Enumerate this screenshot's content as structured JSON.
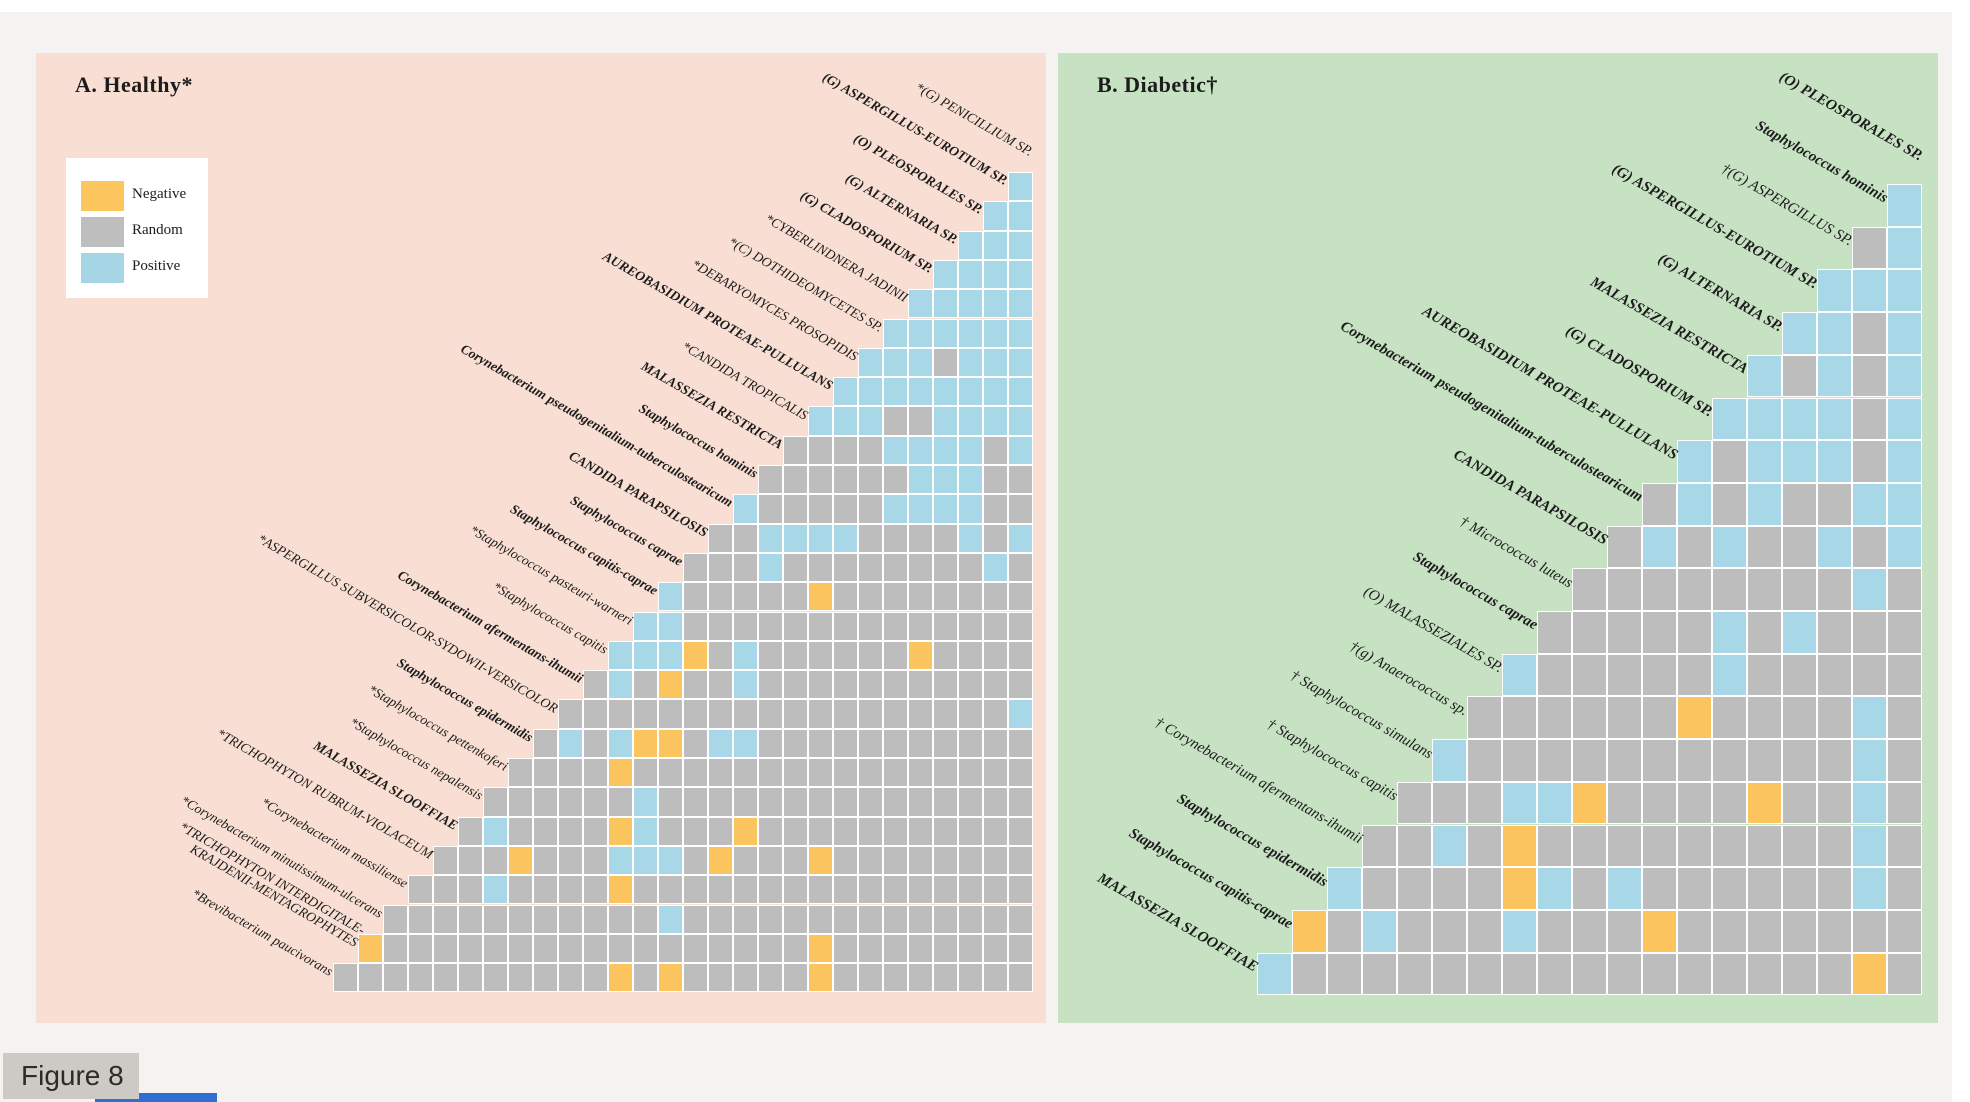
{
  "figure_label": "Figure 8",
  "legend": {
    "items": [
      {
        "code": "N",
        "label": "Negative",
        "color": "#fcc55e"
      },
      {
        "code": "R",
        "label": "Random",
        "color": "#bebebe"
      },
      {
        "code": "P",
        "label": "Positive",
        "color": "#a6d5e6"
      }
    ]
  },
  "chart_data": [
    {
      "type": "heatmap",
      "panel": "A",
      "title": "A. Healthy*",
      "background": "#f9dfd3",
      "legend_position": "upper-left",
      "cell_colors": {
        "P": "#a8d7e8",
        "R": "#bdbdbd",
        "N": "#fcc45f"
      },
      "cell_meaning": {
        "P": "Positive",
        "R": "Random",
        "N": "Negative"
      },
      "taxa": [
        {
          "label": "*(G) PENICILLIUM SP.",
          "bold": false
        },
        {
          "label": "(G) ASPERGILLUS-EUROTIUM SP.",
          "bold": true
        },
        {
          "label": "(O) PLEOSPORALES SP.",
          "bold": true
        },
        {
          "label": "(G) ALTERNARIA SP.",
          "bold": true
        },
        {
          "label": "(G) CLADOSPORIUM SP.",
          "bold": true
        },
        {
          "label": "*CYBERLINDNERA JADINII",
          "bold": false
        },
        {
          "label": "*(C) DOTHIDEOMYCETES SP.",
          "bold": false
        },
        {
          "label": "*DEBARYOMYCES PROSOPIDIS",
          "bold": false
        },
        {
          "label": "AUREOBASIDIUM PROTEAE-PULLULANS",
          "bold": true
        },
        {
          "label": "*CANDIDA TROPICALIS",
          "bold": false
        },
        {
          "label": "MALASSEZIA RESTRICTA",
          "bold": true
        },
        {
          "label": "Staphylococcus hominis",
          "bold": true
        },
        {
          "label": "Corynebacterium pseudogenitalium-tuberculostearicum",
          "bold": true
        },
        {
          "label": "CANDIDA PARAPSILOSIS",
          "bold": true
        },
        {
          "label": "Staphylococcus caprae",
          "bold": true
        },
        {
          "label": "Staphylococcus capitis-caprae",
          "bold": true
        },
        {
          "label": "*Staphylococcus pasteuri-warneri",
          "bold": false
        },
        {
          "label": "*Staphylococcus capitis",
          "bold": false
        },
        {
          "label": "Corynebacterium afermentans-ihumii",
          "bold": true
        },
        {
          "label": "*ASPERGILLUS SUBVERSICOLOR-SYDOWII-VERSICOLOR",
          "bold": false
        },
        {
          "label": "Staphylococcus epidermidis",
          "bold": true
        },
        {
          "label": "*Staphylococcus pettenkoferi",
          "bold": false
        },
        {
          "label": "*Staphylococcus nepalensis",
          "bold": false
        },
        {
          "label": "MALASSEZIA SLOOFFIAE",
          "bold": true
        },
        {
          "label": "*TRICHOPHYTON RUBRUM-VIOLACEUM",
          "bold": false
        },
        {
          "label": "*Corynebacterium massiliense",
          "bold": false
        },
        {
          "label": "*Corynebacterium minutissimum-ulcerans",
          "bold": false
        },
        {
          "label": "*TRICHOPHYTON INTERDIGITALE-\nKRAJDENII-MENTAGROPHYTES",
          "bold": false
        },
        {
          "label": "*Brevibacterium paucivorans",
          "bold": false
        }
      ],
      "rows": [
        "P",
        "PP",
        "PPP",
        "PPPP",
        "PPPPP",
        "PPPPPP",
        "PPPRPPP",
        "PPPPPPPP",
        "PPPRRPPPP",
        "RRRRPPPPRP",
        "RRRRRRPPPRR",
        "PRRRRRPPPPRR",
        "RRPPPPRRRRPRP",
        "RRRPRRRRRRRRPR",
        "PRRRRRNRRRRRRRR",
        "PPRRRRRRRRRRRRRR",
        "PPPNRPRRRRRRNRRRR",
        "RPRNRRPRRRRRRRRRRR",
        "RRRRRRRRRRRRRRRRRRP",
        "RPRPNNRPPRRRRRRRRRRR",
        "RRRRNRRRRRRRRRRRRRRRR",
        "RRRRRRPRRRRRRRRRRRRRRR",
        "RPRRRRNPRRRNRRRRRRRRRRR",
        "RRRNRRRPPPRNRRRNRRRRRRRR",
        "RRRPRRRRNRRRRRRRRRRRRRRRR",
        "RRRRRRRRRRRPRRRRRRRRRRRRRR",
        "NRRRRRRRRRRRRRRRRRNRRRRRRRR",
        "RRRRRRRRRRRNRNRRRRRNRRRRRRRR"
      ]
    },
    {
      "type": "heatmap",
      "panel": "B",
      "title": "B. Diabetic†",
      "background": "#c7e1c3",
      "cell_colors": {
        "P": "#a8d7e8",
        "R": "#bdbdbd",
        "N": "#fcc45f"
      },
      "cell_meaning": {
        "P": "Positive",
        "R": "Random",
        "N": "Negative"
      },
      "taxa": [
        {
          "label": "(O) PLEOSPORALES SP.",
          "bold": true
        },
        {
          "label": "Staphylococcus hominis",
          "bold": true
        },
        {
          "label": "†(G) ASPERGILLUS SP.",
          "bold": false
        },
        {
          "label": "(G) ASPERGILLUS-EUROTIUM SP.",
          "bold": true
        },
        {
          "label": "(G) ALTERNARIA SP.",
          "bold": true
        },
        {
          "label": "MALASSEZIA RESTRICTA",
          "bold": true
        },
        {
          "label": "(G) CLADOSPORIUM SP.",
          "bold": true
        },
        {
          "label": "AUREOBASIDIUM PROTEAE-PULLULANS",
          "bold": true
        },
        {
          "label": "Corynebacterium pseudogenitalium-tuberculostearicum",
          "bold": true
        },
        {
          "label": "CANDIDA PARAPSILOSIS",
          "bold": true
        },
        {
          "label": "† Micrococcus luteus",
          "bold": false
        },
        {
          "label": "Staphylococcus caprae",
          "bold": true
        },
        {
          "label": "(O) MALASSEZIALES SP.",
          "bold": false
        },
        {
          "label": "†(g) Anaerococcus sp.",
          "bold": false
        },
        {
          "label": "† Staphylococcus simulans",
          "bold": false
        },
        {
          "label": "† Staphylococcus capitis",
          "bold": false
        },
        {
          "label": "† Corynebacterium afermentans-ihumii",
          "bold": false
        },
        {
          "label": "Staphylococcus epidermidis",
          "bold": true
        },
        {
          "label": "Staphylococcus capitis-caprae",
          "bold": true
        },
        {
          "label": "MALASSEZIA SLOOFFIAE",
          "bold": true
        }
      ],
      "rows": [
        "P",
        "RP",
        "PPP",
        "PPRP",
        "PRPRP",
        "PPPPRP",
        "PRPPPRP",
        "RPRPRRPP",
        "RPRPRRPRP",
        "RRRRRRRRPR",
        "RRRRRPRPRRR",
        "PRRRRRPRRRRR",
        "RRRRRRNRRRRPR",
        "PRRRRRRRRRRRPR",
        "RRRPPNRRRRNRRPR",
        "RRPRNRRRRRRRRRPR",
        "PRRRRNPRPRRRRRRPR",
        "NRPRRRPRRRNRRRRRRR",
        "PRRRRRRRRRRRRRRRRNR"
      ]
    }
  ]
}
